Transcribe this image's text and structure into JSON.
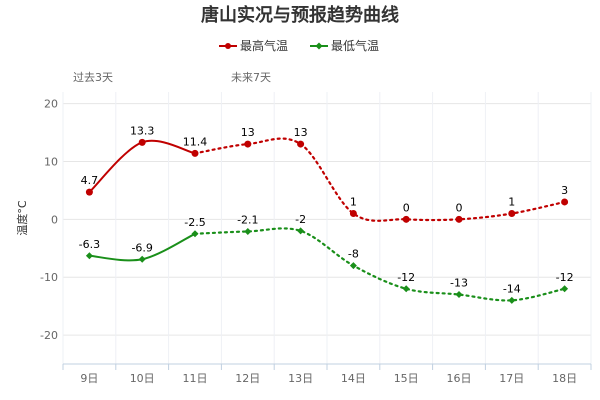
{
  "chart_data": {
    "type": "line",
    "title": "唐山实况与预报趋势曲线",
    "ylabel": "温度°C",
    "xlabel": "",
    "categories": [
      "9日",
      "10日",
      "11日",
      "12日",
      "13日",
      "14日",
      "15日",
      "16日",
      "17日",
      "18日"
    ],
    "ylim": [
      -25,
      22
    ],
    "yticks": [
      20,
      10,
      0,
      -10,
      -20
    ],
    "grid": true,
    "legend_position": "top-center",
    "observed_count": 3,
    "annotations": {
      "past": "过去3天",
      "future": "未来7天"
    },
    "series": [
      {
        "name": "最高气温",
        "color": "#c00000",
        "values": [
          4.7,
          13.3,
          11.4,
          13,
          13,
          1,
          0,
          0,
          1,
          3
        ],
        "labels": [
          "4.7",
          "13.3",
          "11.4",
          "13",
          "13",
          "1",
          "0",
          "0",
          "1",
          "3"
        ]
      },
      {
        "name": "最低气温",
        "color": "#1a8f1a",
        "values": [
          -6.3,
          -6.9,
          -2.5,
          -2.1,
          -2,
          -8,
          -12,
          -13,
          -14,
          -12
        ],
        "labels": [
          "-6.3",
          "-6.9",
          "-2.5",
          "-2.1",
          "-2",
          "-8",
          "-12",
          "-13",
          "-14",
          "-12"
        ]
      }
    ]
  }
}
